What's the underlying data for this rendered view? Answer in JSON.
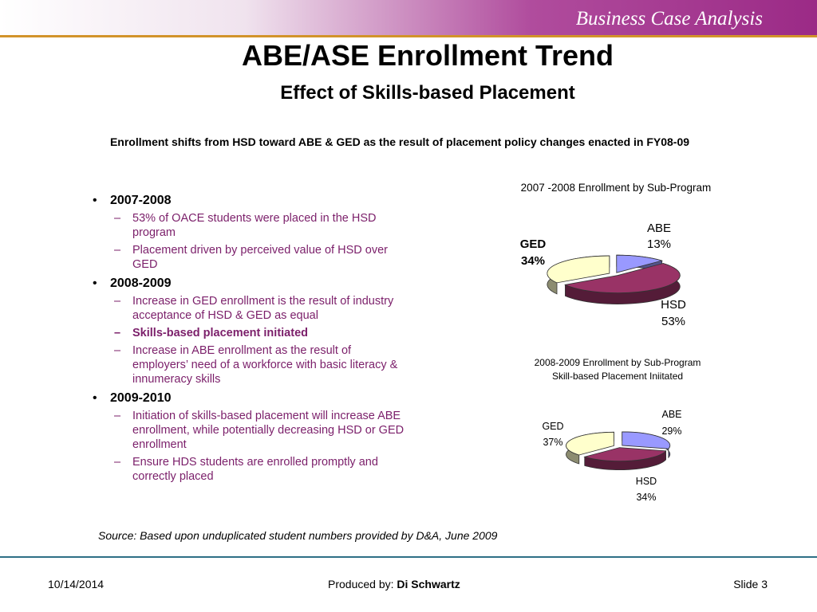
{
  "header": {
    "title": "Business Case Analysis"
  },
  "slide": {
    "title": "ABE/ASE Enrollment Trend",
    "subtitle": "Effect of Skills-based Placement",
    "summary": "Enrollment shifts from HSD toward ABE & GED as the result of placement policy changes enacted in FY08-09"
  },
  "bullets": [
    {
      "heading": "2007-2008",
      "items": [
        {
          "text": "53% of OACE students were placed in the HSD program",
          "bold": false
        },
        {
          "text": "Placement driven by perceived value of HSD over GED",
          "bold": false
        }
      ]
    },
    {
      "heading": "2008-2009",
      "items": [
        {
          "text": "Increase in GED enrollment is the result of industry acceptance of HSD & GED as equal",
          "bold": false
        },
        {
          "text": "Skills-based placement initiated",
          "bold": true
        },
        {
          "text": "Increase in ABE enrollment as the result of employers’ need of a workforce with basic literacy & innumeracy skills",
          "bold": false
        }
      ]
    },
    {
      "heading": "2009-2010",
      "items": [
        {
          "text": "Initiation of skills-based placement will increase ABE enrollment, while potentially decreasing HSD or GED enrollment",
          "bold": false
        },
        {
          "text": "Ensure HDS students are enrolled promptly and correctly placed",
          "bold": false
        }
      ]
    }
  ],
  "chart_data": [
    {
      "type": "pie",
      "title": "2007 -2008 Enrollment by Sub-Program",
      "subtitle": "",
      "slices": [
        {
          "name": "ABE",
          "value": 13,
          "label": "13%",
          "color": "#9999ff"
        },
        {
          "name": "HSD",
          "value": 53,
          "label": "53%",
          "color": "#993366"
        },
        {
          "name": "GED",
          "value": 34,
          "label": "34%",
          "color": "#ffffcc"
        }
      ]
    },
    {
      "type": "pie",
      "title": "2008-2009 Enrollment by Sub-Program",
      "subtitle": "Skill-based Placement Iniitated",
      "slices": [
        {
          "name": "ABE",
          "value": 29,
          "label": "29%",
          "color": "#9999ff"
        },
        {
          "name": "HSD",
          "value": 34,
          "label": "34%",
          "color": "#993366"
        },
        {
          "name": "GED",
          "value": 37,
          "label": "37%",
          "color": "#ffffcc"
        }
      ]
    }
  ],
  "source": "Source: Based upon unduplicated student numbers provided by D&A, June 2009",
  "footer": {
    "date": "10/14/2014",
    "produced_label": "Produced by:",
    "produced_name": "Di Schwartz",
    "slide": "Slide 3"
  }
}
